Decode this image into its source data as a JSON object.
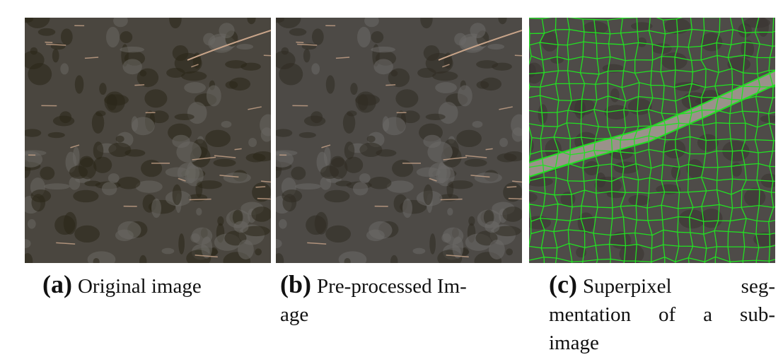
{
  "figure": {
    "panels": [
      {
        "label": "(a)",
        "caption_lines": [
          "Original image"
        ]
      },
      {
        "label": "(b)",
        "caption_lines": [
          "Pre-processed Im-",
          "age"
        ]
      },
      {
        "label": "(c)",
        "caption_lines": [
          "Superpixel seg-",
          "mentation of a sub-",
          "image"
        ]
      }
    ]
  }
}
